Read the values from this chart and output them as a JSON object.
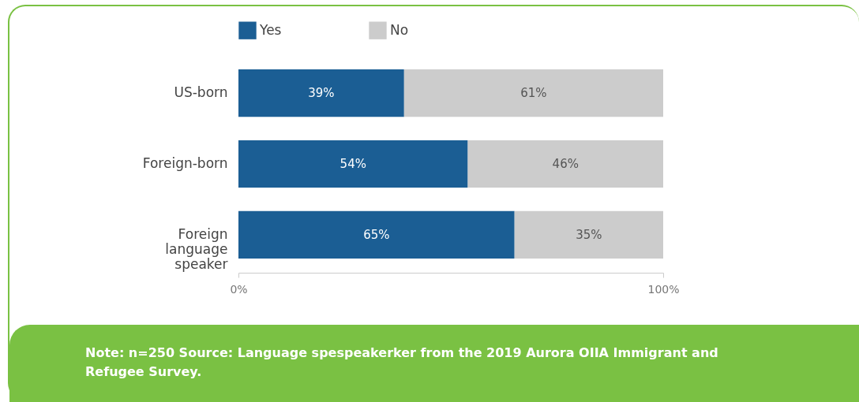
{
  "chart_data": {
    "type": "bar",
    "orientation": "horizontal",
    "stacked": true,
    "categories": [
      "US-born",
      "Foreign-born",
      "Foreign language speaker"
    ],
    "series": [
      {
        "name": "Yes",
        "color": "#1b5e94",
        "values": [
          39,
          54,
          65
        ],
        "value_labels": [
          "39%",
          "54%",
          "65%"
        ]
      },
      {
        "name": "No",
        "color": "#cccccc",
        "values": [
          61,
          46,
          35
        ],
        "value_labels": [
          "61%",
          "46%",
          "35%"
        ]
      }
    ],
    "xlim": [
      0,
      100
    ],
    "xticks": [
      {
        "value": 0,
        "label": "0%"
      },
      {
        "value": 100,
        "label": "100%"
      }
    ],
    "grid": false,
    "legend": "top",
    "annotations": [
      "Note: n=250 Source: Language spespeakerker from the 2019 Aurora OIIA Immigrant and Refugee Survey."
    ]
  }
}
